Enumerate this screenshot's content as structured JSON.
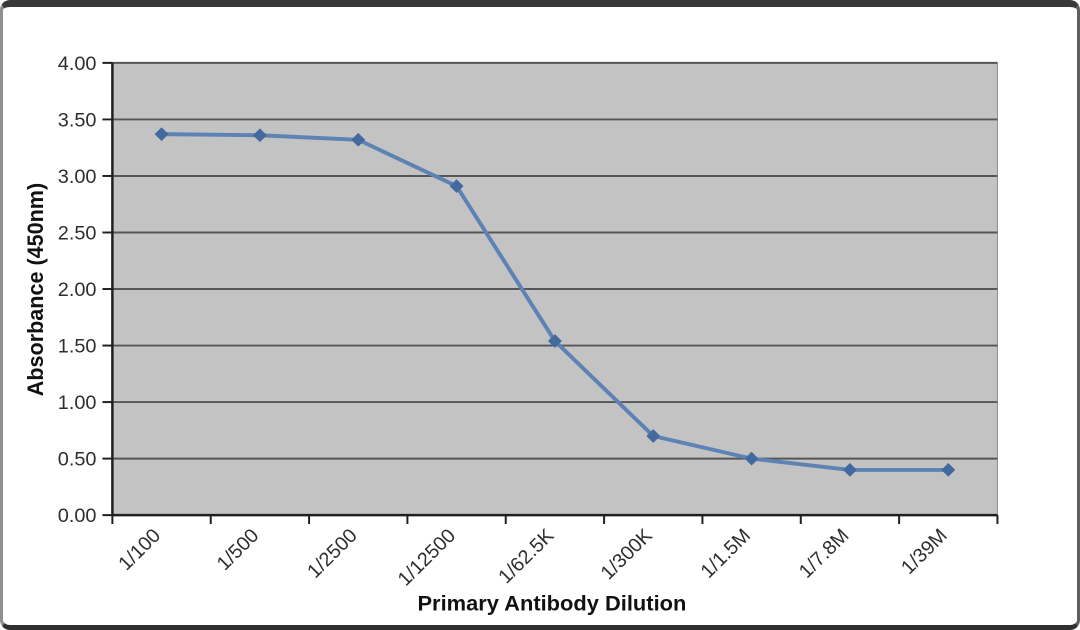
{
  "chart_data": {
    "type": "line",
    "title": "",
    "xlabel": "Primary Antibody Dilution",
    "ylabel": "Absorbance (450nm)",
    "categories": [
      "1/100",
      "1/500",
      "1/2500",
      "1/12500",
      "1/62.5K",
      "1/300K",
      "1/1.5M",
      "1/7.8M",
      "1/39M"
    ],
    "series": [
      {
        "name": "Absorbance (450nm)",
        "values": [
          3.37,
          3.36,
          3.32,
          2.91,
          1.54,
          0.7,
          0.5,
          0.4,
          0.4
        ]
      }
    ],
    "ylim": [
      0,
      4
    ],
    "ytick_step": 0.5,
    "ytick_labels": [
      "0.00",
      "0.50",
      "1.00",
      "1.50",
      "2.00",
      "2.50",
      "3.00",
      "3.50",
      "4.00"
    ],
    "xtick_rotation_deg": -45,
    "grid": "horizontal",
    "legend_position": "none",
    "marker": "diamond",
    "colors": {
      "plot_bg": "#c3c3c3",
      "gridline": "#565656",
      "axis": "#1f1f1f",
      "line": "#5d82b4",
      "marker": "#44699e",
      "tick_text": "#2e2e2e",
      "title_text": "#111111",
      "frame_border": "#383838",
      "page_bg": "#ffffff"
    }
  }
}
